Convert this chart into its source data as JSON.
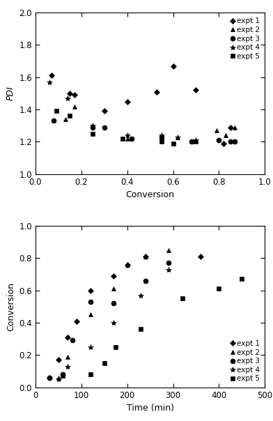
{
  "top_chart": {
    "xlabel": "Conversion",
    "ylabel": "PDI",
    "xlim": [
      0,
      1
    ],
    "ylim": [
      1,
      2
    ],
    "xticks": [
      0,
      0.2,
      0.4,
      0.6,
      0.8,
      1.0
    ],
    "yticks": [
      1.0,
      1.2,
      1.4,
      1.6,
      1.8,
      2.0
    ],
    "series": [
      {
        "label": "expt 1",
        "marker": "D",
        "ms": 4.5,
        "x": [
          0.07,
          0.15,
          0.17,
          0.3,
          0.4,
          0.53,
          0.6,
          0.7,
          0.82,
          0.85
        ],
        "y": [
          1.61,
          1.5,
          1.49,
          1.39,
          1.45,
          1.51,
          1.67,
          1.52,
          1.19,
          1.29
        ]
      },
      {
        "label": "expt 2",
        "marker": "^",
        "ms": 5.0,
        "x": [
          0.13,
          0.17,
          0.4,
          0.55,
          0.62,
          0.79,
          0.83,
          0.87
        ],
        "y": [
          1.34,
          1.42,
          1.22,
          1.23,
          1.23,
          1.27,
          1.24,
          1.29
        ]
      },
      {
        "label": "expt 3",
        "marker": "o",
        "ms": 5.0,
        "x": [
          0.08,
          0.25,
          0.3,
          0.42,
          0.55,
          0.68,
          0.8,
          0.85,
          0.87
        ],
        "y": [
          1.33,
          1.29,
          1.29,
          1.22,
          1.23,
          1.2,
          1.21,
          1.2,
          1.2
        ]
      },
      {
        "label": "expt 4",
        "marker": "*",
        "ms": 6.0,
        "x": [
          0.06,
          0.14,
          0.25,
          0.4,
          0.55,
          0.62,
          0.7,
          0.8
        ],
        "y": [
          1.57,
          1.47,
          1.3,
          1.24,
          1.24,
          1.23,
          1.21,
          1.21
        ]
      },
      {
        "label": "expt 5",
        "marker": "s",
        "ms": 4.5,
        "x": [
          0.09,
          0.15,
          0.25,
          0.38,
          0.55,
          0.6,
          0.7
        ],
        "y": [
          1.39,
          1.36,
          1.25,
          1.22,
          1.2,
          1.19,
          1.2
        ]
      }
    ]
  },
  "bottom_chart": {
    "xlabel": "Time (min)",
    "ylabel": "Conversion",
    "xlim": [
      0,
      500
    ],
    "ylim": [
      0,
      1
    ],
    "xticks": [
      0,
      100,
      200,
      300,
      400,
      500
    ],
    "yticks": [
      0.0,
      0.2,
      0.4,
      0.6,
      0.8,
      1.0
    ],
    "series": [
      {
        "label": "expt 1",
        "marker": "D",
        "ms": 4.5,
        "x": [
          30,
          50,
          70,
          90,
          120,
          170,
          200,
          240,
          360
        ],
        "y": [
          0.06,
          0.17,
          0.31,
          0.41,
          0.6,
          0.69,
          0.76,
          0.81,
          0.81
        ]
      },
      {
        "label": "expt 2",
        "marker": "^",
        "ms": 5.0,
        "x": [
          50,
          70,
          120,
          170,
          200,
          240,
          290
        ],
        "y": [
          0.06,
          0.19,
          0.45,
          0.61,
          0.76,
          0.81,
          0.85
        ]
      },
      {
        "label": "expt 3",
        "marker": "o",
        "ms": 5.0,
        "x": [
          30,
          60,
          80,
          120,
          170,
          240,
          290
        ],
        "y": [
          0.06,
          0.08,
          0.29,
          0.53,
          0.52,
          0.66,
          0.77
        ]
      },
      {
        "label": "expt 4",
        "marker": "*",
        "ms": 6.0,
        "x": [
          50,
          70,
          120,
          170,
          230,
          290
        ],
        "y": [
          0.05,
          0.13,
          0.25,
          0.4,
          0.57,
          0.73
        ]
      },
      {
        "label": "expt 5",
        "marker": "s",
        "ms": 4.5,
        "x": [
          60,
          120,
          150,
          175,
          230,
          320,
          400,
          450
        ],
        "y": [
          0.07,
          0.08,
          0.15,
          0.25,
          0.36,
          0.55,
          0.61,
          0.67
        ]
      }
    ]
  }
}
